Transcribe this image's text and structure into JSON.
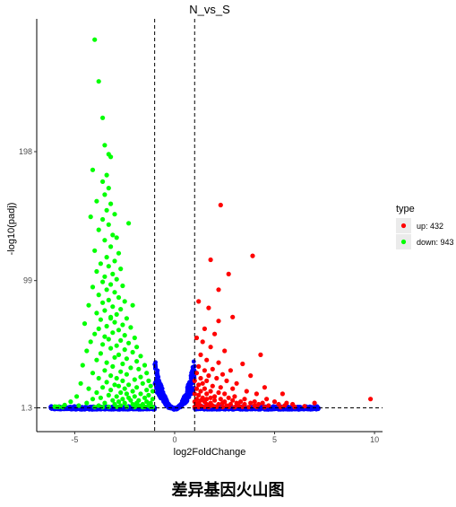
{
  "chart_data": {
    "type": "scatter",
    "title": "N_vs_S",
    "xlabel": "log2FoldChange",
    "ylabel": "-log10(padj)",
    "xlim": [
      -6.9,
      10.4
    ],
    "ylim": [
      -17,
      300
    ],
    "x_ticks": [
      -5,
      0,
      5,
      10
    ],
    "y_ticks": [
      1.3,
      99,
      198
    ],
    "fold_change_thresholds": [
      -1,
      1
    ],
    "padj_threshold": 1.3,
    "grid": false,
    "legend": {
      "title": "type",
      "placement": "right",
      "entries": [
        {
          "label": "up: 432",
          "color": "#ff0000"
        },
        {
          "label": "down: 943",
          "color": "#00ff00"
        }
      ]
    },
    "series": [
      {
        "name": "up: 432",
        "color": "#ff0000",
        "points": [
          [
            2.3,
            157
          ],
          [
            3.9,
            118
          ],
          [
            1.8,
            115
          ],
          [
            2.7,
            104
          ],
          [
            2.2,
            92
          ],
          [
            1.2,
            83
          ],
          [
            1.7,
            78
          ],
          [
            2.9,
            71
          ],
          [
            2.2,
            68
          ],
          [
            1.5,
            62
          ],
          [
            2.0,
            58
          ],
          [
            1.1,
            55
          ],
          [
            1.4,
            52
          ],
          [
            1.8,
            48
          ],
          [
            2.5,
            45
          ],
          [
            1.3,
            42
          ],
          [
            4.3,
            42
          ],
          [
            1.6,
            38
          ],
          [
            2.2,
            36
          ],
          [
            3.4,
            35
          ],
          [
            1.2,
            33
          ],
          [
            1.9,
            31
          ],
          [
            1.5,
            30
          ],
          [
            2.8,
            30
          ],
          [
            1.1,
            28
          ],
          [
            2.4,
            27
          ],
          [
            1.7,
            26
          ],
          [
            3.8,
            26
          ],
          [
            1.3,
            24
          ],
          [
            2.1,
            24
          ],
          [
            1.0,
            22
          ],
          [
            1.6,
            22
          ],
          [
            2.6,
            22
          ],
          [
            1.4,
            20
          ],
          [
            3.1,
            20
          ],
          [
            1.2,
            19
          ],
          [
            1.9,
            18
          ],
          [
            2.3,
            17
          ],
          [
            4.5,
            17
          ],
          [
            1.1,
            16
          ],
          [
            1.5,
            16
          ],
          [
            2.9,
            16
          ],
          [
            1.3,
            14
          ],
          [
            1.8,
            14
          ],
          [
            3.6,
            14
          ],
          [
            2.2,
            13
          ],
          [
            1.0,
            12
          ],
          [
            1.6,
            12
          ],
          [
            2.5,
            12
          ],
          [
            4.1,
            12
          ],
          [
            1.2,
            11
          ],
          [
            2.0,
            10
          ],
          [
            3.0,
            10
          ],
          [
            1.4,
            9
          ],
          [
            1.8,
            9
          ],
          [
            2.7,
            9
          ],
          [
            5.4,
            12
          ],
          [
            1.1,
            8
          ],
          [
            1.6,
            8
          ],
          [
            2.3,
            8
          ],
          [
            3.5,
            8
          ],
          [
            4.6,
            8
          ],
          [
            1.3,
            7
          ],
          [
            2.0,
            7
          ],
          [
            2.9,
            7
          ],
          [
            1.0,
            6
          ],
          [
            1.5,
            6
          ],
          [
            2.5,
            6
          ],
          [
            3.3,
            6
          ],
          [
            4.0,
            6
          ],
          [
            5.0,
            6
          ],
          [
            1.2,
            5
          ],
          [
            1.8,
            5
          ],
          [
            2.4,
            5
          ],
          [
            3.1,
            5
          ],
          [
            3.8,
            5
          ],
          [
            4.4,
            5
          ],
          [
            5.6,
            5
          ],
          [
            1.1,
            4
          ],
          [
            1.6,
            4
          ],
          [
            2.2,
            4
          ],
          [
            2.8,
            4
          ],
          [
            3.5,
            4
          ],
          [
            4.2,
            4
          ],
          [
            5.2,
            4
          ],
          [
            5.9,
            4
          ],
          [
            1.3,
            3
          ],
          [
            1.9,
            3
          ],
          [
            2.6,
            3
          ],
          [
            3.2,
            3
          ],
          [
            4.0,
            3
          ],
          [
            4.7,
            3
          ],
          [
            5.5,
            3
          ],
          [
            1.0,
            2
          ],
          [
            1.5,
            2
          ],
          [
            2.1,
            2
          ],
          [
            2.7,
            2
          ],
          [
            3.4,
            2
          ],
          [
            4.1,
            2
          ],
          [
            6.0,
            2
          ],
          [
            7.0,
            5
          ],
          [
            9.8,
            8
          ],
          [
            6.5,
            2.5
          ],
          [
            1.2,
            1.8
          ],
          [
            1.7,
            1.8
          ],
          [
            2.4,
            1.8
          ],
          [
            3.0,
            1.8
          ],
          [
            3.7,
            1.8
          ],
          [
            4.5,
            1.8
          ],
          [
            5.3,
            1.8
          ]
        ]
      },
      {
        "name": "down: 943",
        "color": "#00ff00",
        "points": [
          [
            -4.0,
            284
          ],
          [
            -3.8,
            252
          ],
          [
            -3.6,
            224
          ],
          [
            -3.5,
            203
          ],
          [
            -3.2,
            194
          ],
          [
            -3.3,
            196
          ],
          [
            -4.1,
            184
          ],
          [
            -3.4,
            180
          ],
          [
            -3.6,
            175
          ],
          [
            -3.3,
            170
          ],
          [
            -3.5,
            165
          ],
          [
            -3.9,
            160
          ],
          [
            -3.2,
            158
          ],
          [
            -3.4,
            153
          ],
          [
            -4.2,
            148
          ],
          [
            -3.0,
            150
          ],
          [
            -3.6,
            146
          ],
          [
            -3.3,
            142
          ],
          [
            -2.3,
            143
          ],
          [
            -3.8,
            138
          ],
          [
            -3.1,
            134
          ],
          [
            -2.9,
            132
          ],
          [
            -3.5,
            130
          ],
          [
            -3.2,
            125
          ],
          [
            -4.0,
            122
          ],
          [
            -2.8,
            120
          ],
          [
            -3.4,
            117
          ],
          [
            -3.0,
            114
          ],
          [
            -3.7,
            112
          ],
          [
            -3.3,
            110
          ],
          [
            -2.7,
            108
          ],
          [
            -3.9,
            106
          ],
          [
            -3.1,
            104
          ],
          [
            -3.5,
            102
          ],
          [
            -2.9,
            100
          ],
          [
            -3.6,
            98
          ],
          [
            -3.2,
            96
          ],
          [
            -2.6,
            95
          ],
          [
            -4.1,
            94
          ],
          [
            -3.4,
            92
          ],
          [
            -3.0,
            90
          ],
          [
            -3.8,
            88
          ],
          [
            -2.8,
            86
          ],
          [
            -3.3,
            84
          ],
          [
            -2.5,
            83
          ],
          [
            -3.6,
            82
          ],
          [
            -4.3,
            80
          ],
          [
            -3.1,
            79
          ],
          [
            -2.7,
            77
          ],
          [
            -3.5,
            76
          ],
          [
            -3.9,
            74
          ],
          [
            -2.9,
            73
          ],
          [
            -3.2,
            71
          ],
          [
            -2.4,
            70
          ],
          [
            -3.7,
            69
          ],
          [
            -3.0,
            67
          ],
          [
            -4.5,
            66
          ],
          [
            -2.6,
            65
          ],
          [
            -3.4,
            64
          ],
          [
            -2.2,
            63
          ],
          [
            -3.8,
            62
          ],
          [
            -2.8,
            61
          ],
          [
            -3.1,
            59
          ],
          [
            -4.0,
            58
          ],
          [
            -2.5,
            57
          ],
          [
            -3.5,
            56
          ],
          [
            -2.0,
            55
          ],
          [
            -3.3,
            54
          ],
          [
            -2.7,
            53
          ],
          [
            -4.2,
            52
          ],
          [
            -2.3,
            51
          ],
          [
            -3.6,
            50
          ],
          [
            -2.9,
            49
          ],
          [
            -1.9,
            48
          ],
          [
            -3.2,
            47
          ],
          [
            -2.5,
            46
          ],
          [
            -4.4,
            45
          ],
          [
            -2.1,
            44
          ],
          [
            -3.7,
            43
          ],
          [
            -2.8,
            42
          ],
          [
            -1.7,
            41
          ],
          [
            -3.0,
            40
          ],
          [
            -2.4,
            39
          ],
          [
            -3.9,
            38
          ],
          [
            -1.9,
            37
          ],
          [
            -3.4,
            36
          ],
          [
            -2.6,
            35
          ],
          [
            -1.5,
            34
          ],
          [
            -4.6,
            34
          ],
          [
            -3.1,
            33
          ],
          [
            -2.2,
            32
          ],
          [
            -1.8,
            31
          ],
          [
            -3.5,
            30
          ],
          [
            -2.7,
            29
          ],
          [
            -1.4,
            28
          ],
          [
            -4.1,
            28
          ],
          [
            -2.4,
            27
          ],
          [
            -3.2,
            26
          ],
          [
            -1.7,
            25
          ],
          [
            -2.9,
            24
          ],
          [
            -3.8,
            24
          ],
          [
            -2.0,
            23
          ],
          [
            -1.3,
            22
          ],
          [
            -2.6,
            22
          ],
          [
            -3.4,
            21
          ],
          [
            -4.7,
            20
          ],
          [
            -1.6,
            20
          ],
          [
            -2.3,
            19
          ],
          [
            -3.0,
            19
          ],
          [
            -1.2,
            18
          ],
          [
            -2.8,
            18
          ],
          [
            -3.6,
            17
          ],
          [
            -1.9,
            17
          ],
          [
            -2.5,
            16
          ],
          [
            -4.3,
            16
          ],
          [
            -1.4,
            15
          ],
          [
            -3.2,
            15
          ],
          [
            -2.1,
            14
          ],
          [
            -1.1,
            14
          ],
          [
            -2.7,
            13
          ],
          [
            -3.9,
            13
          ],
          [
            -1.7,
            12
          ],
          [
            -2.4,
            12
          ],
          [
            -3.3,
            11
          ],
          [
            -1.3,
            11
          ],
          [
            -2.0,
            10
          ],
          [
            -4.9,
            10
          ],
          [
            -2.9,
            10
          ],
          [
            -1.5,
            9
          ],
          [
            -3.7,
            9
          ],
          [
            -2.3,
            9
          ],
          [
            -1.1,
            8
          ],
          [
            -2.6,
            8
          ],
          [
            -4.1,
            8
          ],
          [
            -1.8,
            7
          ],
          [
            -3.1,
            7
          ],
          [
            -2.2,
            7
          ],
          [
            -1.4,
            6
          ],
          [
            -5.2,
            6
          ],
          [
            -2.8,
            6
          ],
          [
            -1.9,
            5
          ],
          [
            -3.5,
            5
          ],
          [
            -1.2,
            5
          ],
          [
            -2.5,
            5
          ],
          [
            -4.4,
            5
          ],
          [
            -1.6,
            4
          ],
          [
            -3.0,
            4
          ],
          [
            -2.1,
            4
          ],
          [
            -5.5,
            3.5
          ],
          [
            -1.3,
            3
          ],
          [
            -2.7,
            3
          ],
          [
            -3.8,
            3
          ],
          [
            -1.8,
            3
          ],
          [
            -4.8,
            3
          ],
          [
            -2.4,
            2
          ],
          [
            -1.1,
            2
          ],
          [
            -3.3,
            2
          ],
          [
            -5.9,
            2
          ],
          [
            -1.5,
            2
          ],
          [
            -2.9,
            2
          ],
          [
            -6.0,
            2.2
          ],
          [
            -5.8,
            2.1
          ],
          [
            -5.6,
            1.9
          ],
          [
            -4.0,
            1.8
          ],
          [
            -3.6,
            1.8
          ],
          [
            -2.0,
            1.8
          ],
          [
            -1.6,
            1.8
          ],
          [
            -1.2,
            1.8
          ],
          [
            -3.2,
            70
          ],
          [
            -2.1,
            80
          ]
        ]
      },
      {
        "name": "no",
        "color": "#0000ff",
        "points": []
      }
    ]
  },
  "caption": "差异基因火山图"
}
